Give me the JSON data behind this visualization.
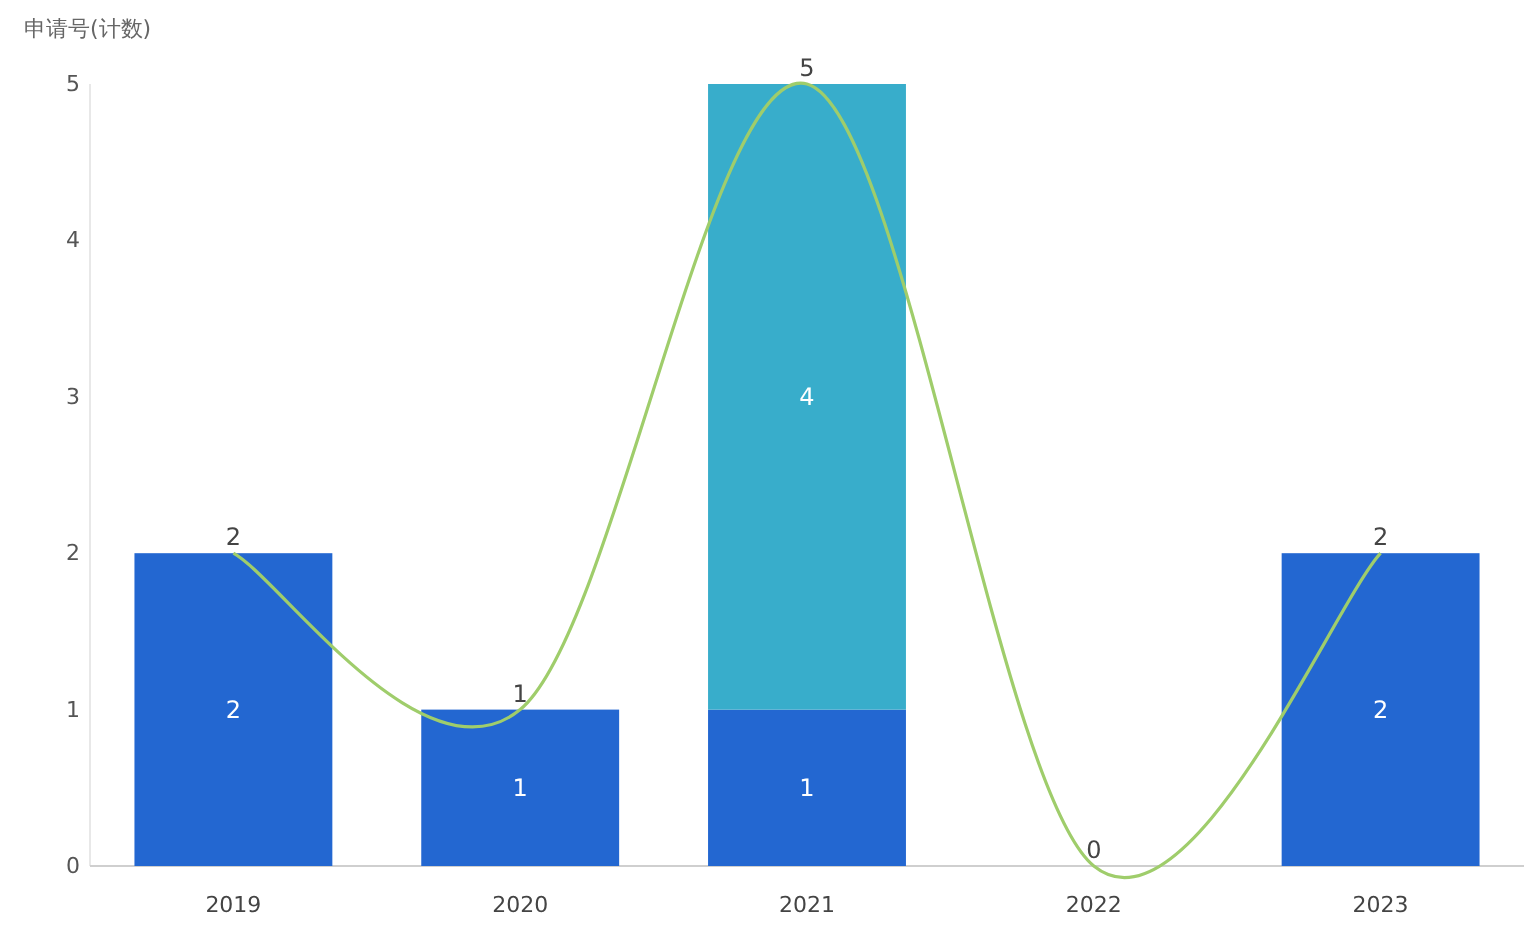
{
  "chart_data": {
    "type": "bar",
    "ylabel": "申请号(计数)",
    "stacked": true,
    "categories": [
      "2019",
      "2020",
      "2021",
      "2022",
      "2023"
    ],
    "series": [
      {
        "color": "#2367d1",
        "values": [
          2,
          1,
          1,
          0,
          2
        ],
        "value_labels": [
          "2",
          "1",
          "1",
          null,
          "2"
        ]
      },
      {
        "color": "#38adcb",
        "values": [
          null,
          null,
          4,
          null,
          null
        ],
        "value_labels": [
          null,
          null,
          "4",
          null,
          null
        ]
      },
      {
        "type": "line",
        "color": "#9fcd6b",
        "values": [
          2,
          1,
          5,
          0,
          2
        ]
      }
    ],
    "totals": [
      "2",
      "1",
      "5",
      "0",
      "2"
    ],
    "ylim": [
      0,
      5
    ],
    "yticks": [
      0,
      1,
      2,
      3,
      4,
      5
    ]
  }
}
